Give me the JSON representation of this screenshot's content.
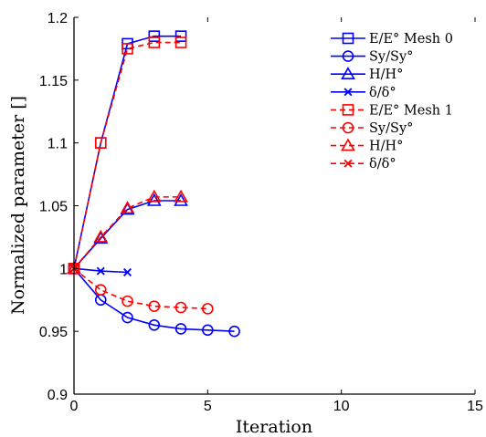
{
  "chart_data": {
    "type": "line",
    "xlabel": "Iteration",
    "ylabel": "Normalized parameter []",
    "xlim": [
      0,
      15
    ],
    "ylim": [
      0.9,
      1.2
    ],
    "x_ticks": [
      "0",
      "5",
      "10",
      "15"
    ],
    "y_ticks": [
      "0.9",
      "0.95",
      "1",
      "1.05",
      "1.1",
      "1.15",
      "1.2"
    ],
    "grid": false,
    "legend_position": "top-right",
    "series": [
      {
        "name": "E/E° Mesh 0",
        "color": "#0000ff",
        "dash": "solid",
        "marker": "square",
        "x": [
          0,
          1,
          2,
          3,
          4
        ],
        "y": [
          1.0,
          1.1,
          1.179,
          1.185,
          1.185
        ]
      },
      {
        "name": "Sy/Sy°",
        "color": "#0000ff",
        "dash": "solid",
        "marker": "circle",
        "x": [
          0,
          1,
          2,
          3,
          4,
          5,
          6
        ],
        "y": [
          1.0,
          0.975,
          0.961,
          0.955,
          0.952,
          0.951,
          0.95
        ]
      },
      {
        "name": "H/H°",
        "color": "#0000ff",
        "dash": "solid",
        "marker": "triangle",
        "x": [
          0,
          1,
          2,
          3,
          4
        ],
        "y": [
          1.0,
          1.024,
          1.047,
          1.054,
          1.054
        ]
      },
      {
        "name": "δ/δ°",
        "color": "#0000ff",
        "dash": "solid",
        "marker": "x",
        "x": [
          0,
          1,
          2
        ],
        "y": [
          1.0,
          0.998,
          0.997
        ]
      },
      {
        "name": "E/E° Mesh 1",
        "color": "#ff0000",
        "dash": "dashed",
        "marker": "square",
        "x": [
          0,
          1,
          2,
          3,
          4
        ],
        "y": [
          1.0,
          1.1,
          1.175,
          1.18,
          1.18
        ]
      },
      {
        "name": "Sy/Sy°",
        "color": "#ff0000",
        "dash": "dashed",
        "marker": "circle",
        "x": [
          0,
          1,
          2,
          3,
          4,
          5
        ],
        "y": [
          1.0,
          0.983,
          0.974,
          0.97,
          0.969,
          0.968
        ]
      },
      {
        "name": "H/H°",
        "color": "#ff0000",
        "dash": "dashed",
        "marker": "triangle",
        "x": [
          0,
          1,
          2,
          3,
          4
        ],
        "y": [
          1.0,
          1.025,
          1.048,
          1.057,
          1.057
        ]
      },
      {
        "name": "δ/δ°",
        "color": "#ff0000",
        "dash": "dashed",
        "marker": "x",
        "x": [
          0
        ],
        "y": [
          1.0
        ]
      }
    ]
  }
}
